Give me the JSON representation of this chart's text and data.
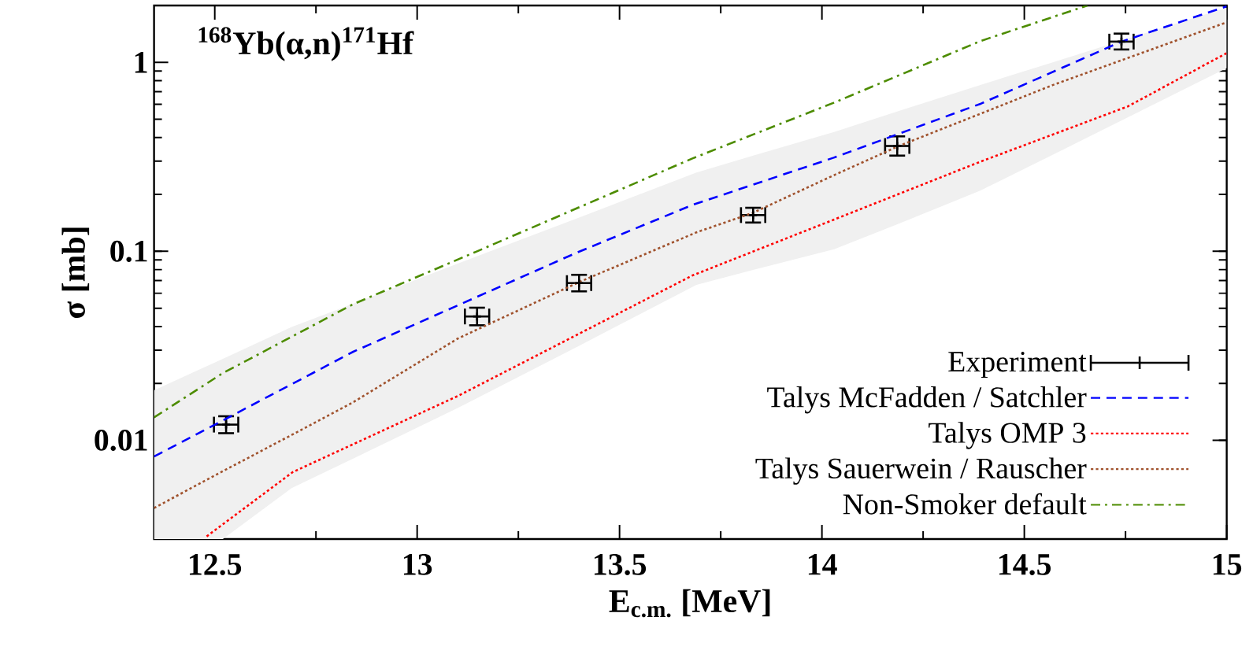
{
  "chart_data": {
    "type": "line",
    "title": "$^{168}$Yb(α,n)$^{171}$Hf",
    "xlabel": "E$_{c.m.}$ [MeV]",
    "ylabel": "σ [mb]",
    "xlim": [
      12.35,
      15
    ],
    "ylim": [
      0.003,
      2
    ],
    "xticks": [
      12.5,
      13,
      13.5,
      14,
      14.5,
      15
    ],
    "yticks": [
      0.01,
      0.1,
      1
    ],
    "log": "y",
    "legend": "bottom right",
    "series": [
      {
        "name": "Experiment",
        "type": "scatter",
        "marker": "cross",
        "color": "#000000",
        "x": [
          12.528,
          13.148,
          13.4,
          13.83,
          14.186,
          14.74
        ],
        "values": [
          0.0121,
          0.0452,
          0.0679,
          0.1555,
          0.361,
          1.288
        ],
        "errors": [
          [
            0.0109,
            0.0134
          ],
          [
            0.0406,
            0.0503
          ],
          [
            0.0614,
            0.0751
          ],
          [
            0.142,
            0.17
          ],
          [
            0.321,
            0.406
          ],
          [
            1.17,
            1.42
          ]
        ],
        "xerrors": [
          0.03,
          0.03,
          0.03,
          0.03,
          0.03,
          0.03
        ]
      },
      {
        "name": "Talys McFadden / Satchler",
        "line_style": "dashed",
        "color": "#0000ff",
        "x": [
          12.35,
          12.528,
          12.842,
          13.147,
          13.391,
          13.68,
          14.029,
          14.393,
          14.74,
          15
        ],
        "values": [
          0.0082,
          0.013,
          0.0294,
          0.0573,
          0.0977,
          0.176,
          0.313,
          0.605,
          1.288,
          1.98
        ]
      },
      {
        "name": "Talys OMP 3",
        "line_style": "dotted",
        "color": "#ff0000",
        "x": [
          12.48,
          12.693,
          13.103,
          13.68,
          14.029,
          14.393,
          14.756,
          15
        ],
        "values": [
          0.0031,
          0.00679,
          0.01725,
          0.0745,
          0.147,
          0.299,
          0.585,
          1.12
        ]
      },
      {
        "name": "Talys Sauerwein / Rauscher",
        "line_style": "dotted",
        "color": "#a0522d",
        "x": [
          12.35,
          12.52,
          12.69,
          12.84,
          13.1,
          13.4,
          13.69,
          13.83,
          14.03,
          14.19,
          14.39,
          14.57,
          15
        ],
        "values": [
          0.00438,
          0.00686,
          0.01067,
          0.0158,
          0.0345,
          0.0687,
          0.126,
          0.16,
          0.253,
          0.361,
          0.533,
          0.758,
          1.63
        ],
        "lower": [
          0.003,
          0.003,
          0.00558,
          0.00796,
          0.0148,
          0.0316,
          0.0665,
          0.0798,
          0.1026,
          0.14,
          0.209,
          0.324,
          0.934
        ],
        "upper": [
          0.0184,
          0.027,
          0.0398,
          0.0526,
          0.086,
          0.151,
          0.261,
          0.321,
          0.428,
          0.553,
          0.758,
          1.0,
          1.95
        ]
      },
      {
        "name": "Non-Smoker default",
        "line_style": "dashdot",
        "color": "#4d8c00",
        "x": [
          12.35,
          12.519,
          12.842,
          13.147,
          13.68,
          14.029,
          14.393,
          14.656
        ],
        "values": [
          0.0132,
          0.0226,
          0.0525,
          0.0998,
          0.31,
          0.611,
          1.3,
          2.0
        ]
      }
    ]
  }
}
